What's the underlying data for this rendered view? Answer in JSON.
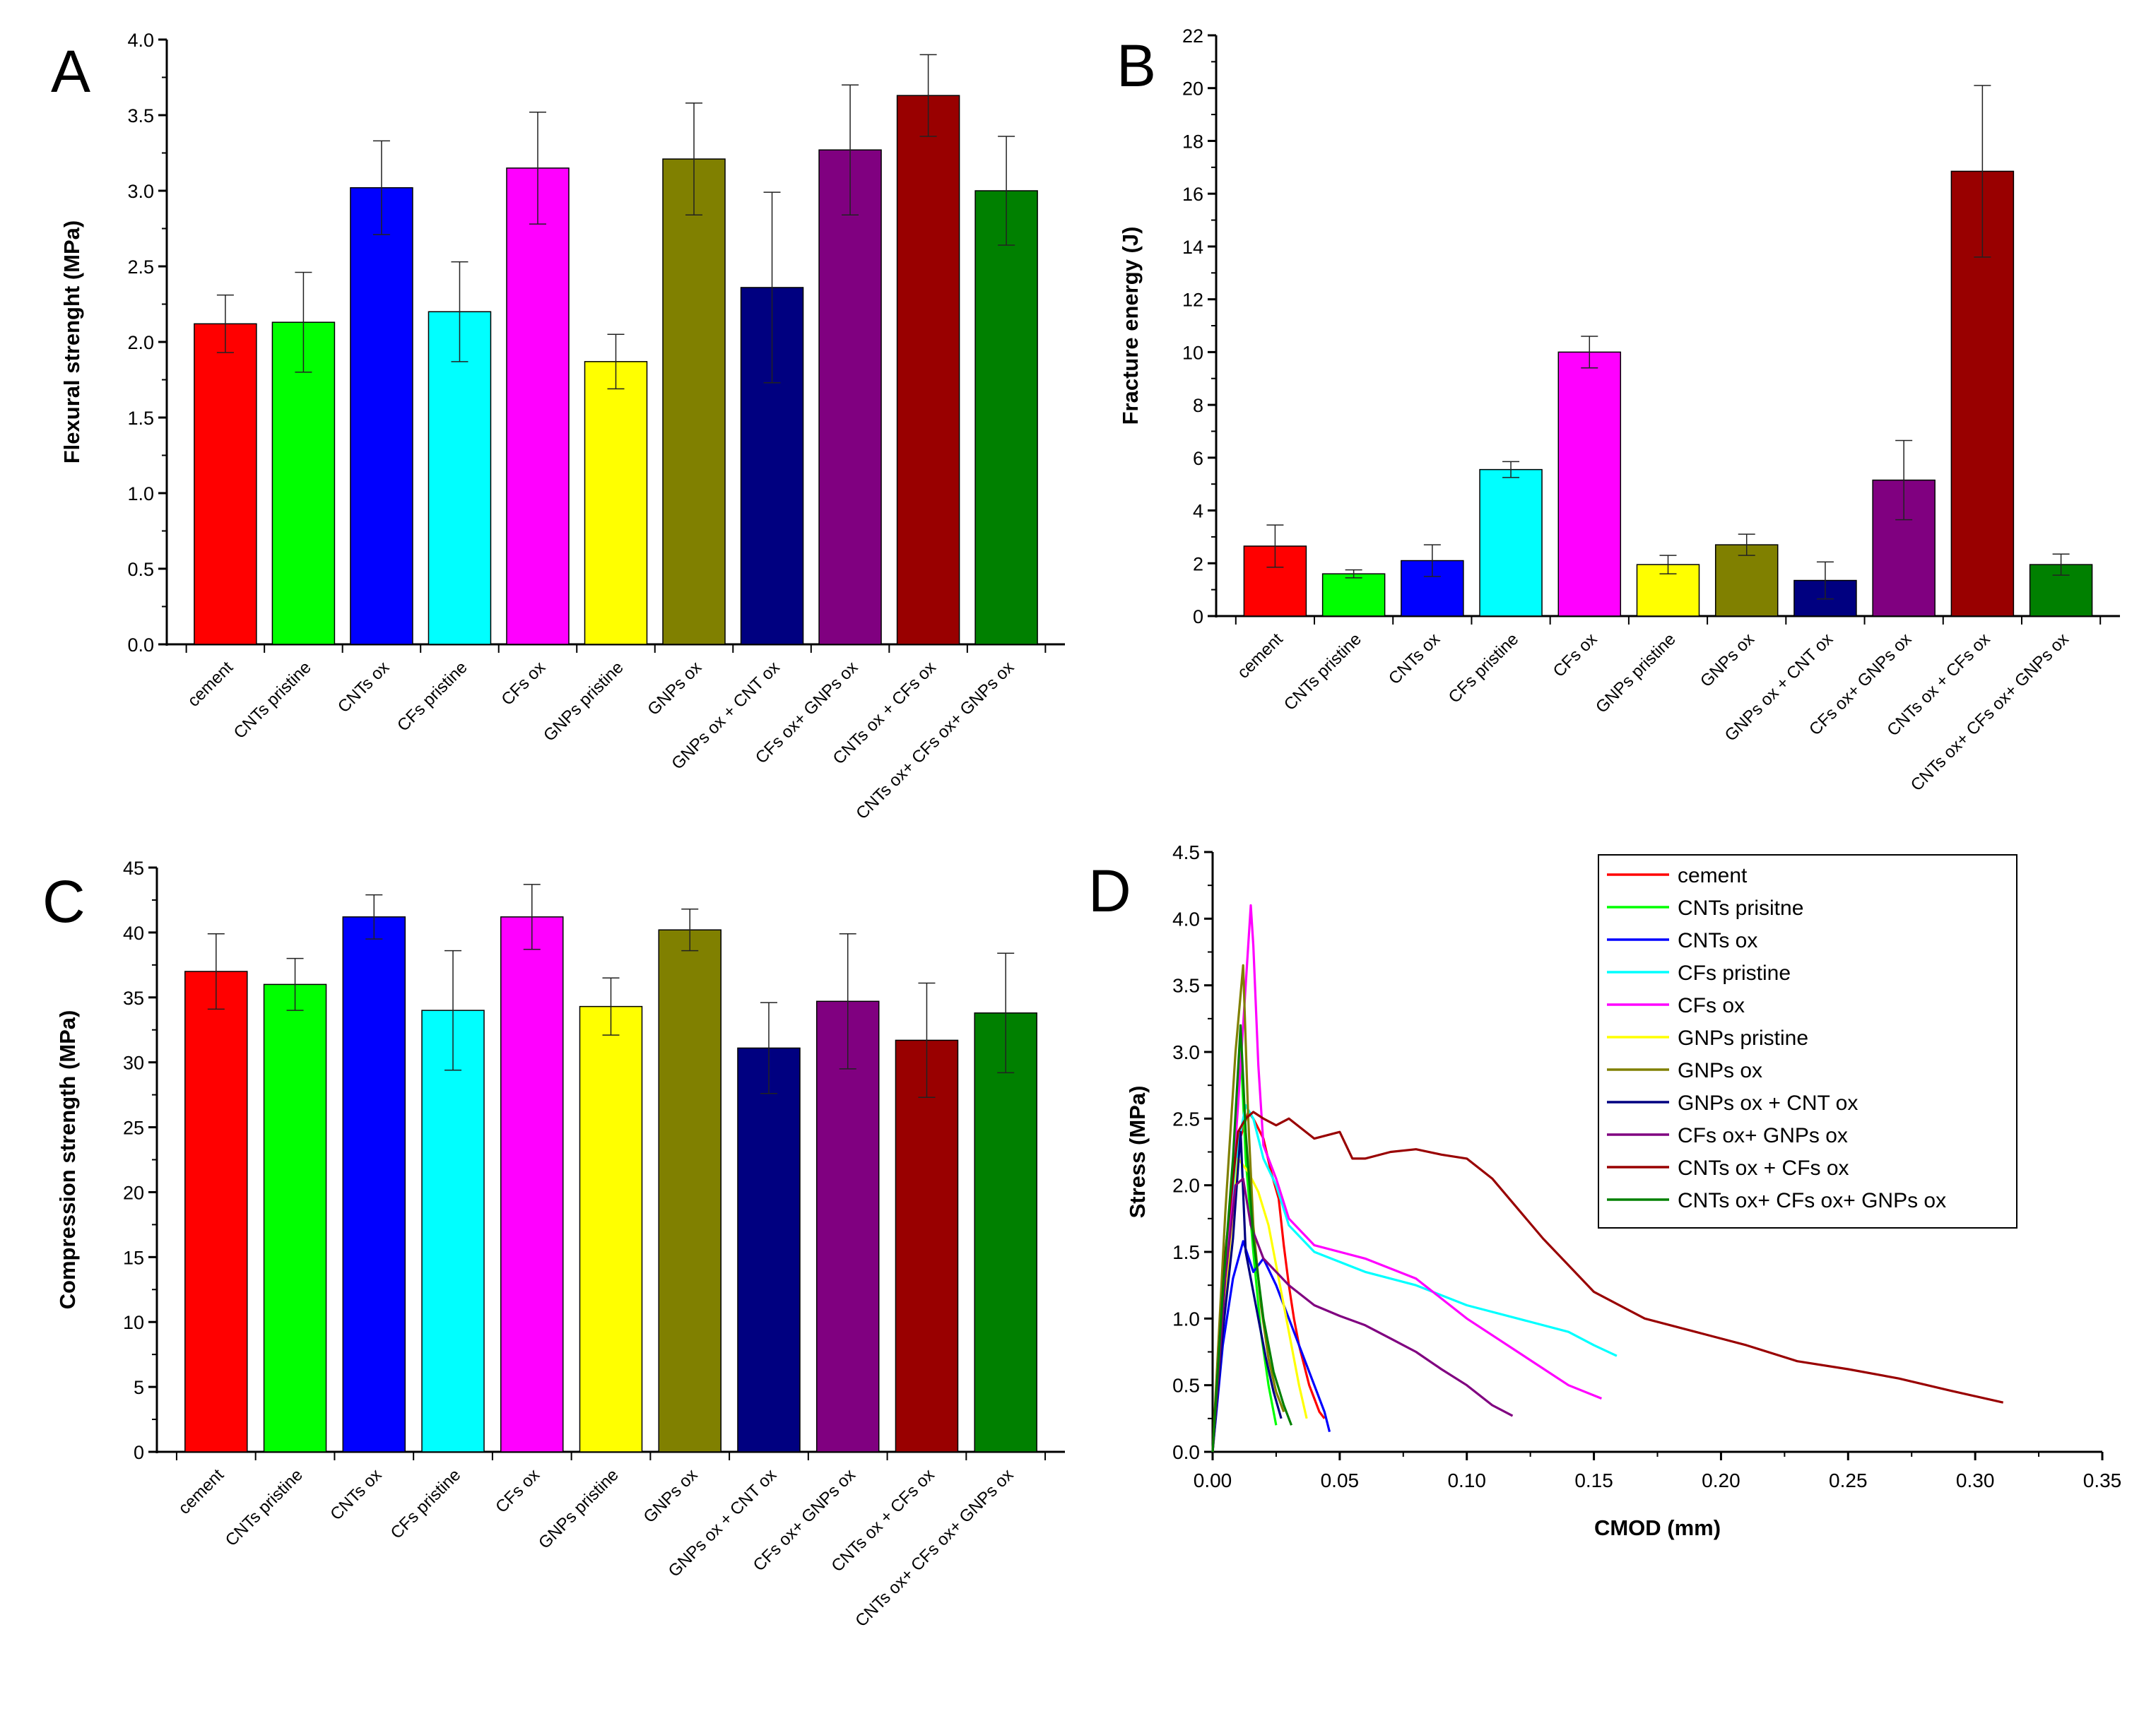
{
  "figure": {
    "background": "#ffffff"
  },
  "chart_data": [
    {
      "id": "A",
      "panel_label": "A",
      "type": "bar",
      "ylabel": "Flexural strenght (MPa)",
      "xlabel": "",
      "ylim": [
        0,
        4.0
      ],
      "yticks": [
        "0.0",
        "0.5",
        "1.0",
        "1.5",
        "2.0",
        "2.5",
        "3.0",
        "3.5",
        "4.0"
      ],
      "categories": [
        "cement",
        "CNTs pristine",
        "CNTs ox",
        "CFs pristine",
        "CFs ox",
        "GNPs pristine",
        "GNPs ox",
        "GNPs ox + CNT ox",
        "CFs ox+ GNPs ox",
        "CNTs ox + CFs ox",
        "CNTs ox+ CFs ox+ GNPs ox"
      ],
      "values": [
        2.12,
        2.13,
        3.02,
        2.2,
        3.15,
        1.87,
        3.21,
        2.36,
        3.27,
        3.63,
        3.0
      ],
      "errors": [
        0.19,
        0.33,
        0.31,
        0.33,
        0.37,
        0.18,
        0.37,
        0.63,
        0.43,
        0.27,
        0.36
      ],
      "colors": [
        "#ff0000",
        "#00ff00",
        "#0000ff",
        "#00ffff",
        "#ff00ff",
        "#ffff00",
        "#808000",
        "#000080",
        "#800080",
        "#990000",
        "#008000"
      ]
    },
    {
      "id": "B",
      "panel_label": "B",
      "type": "bar",
      "ylabel": "Fracture energy (J)",
      "xlabel": "",
      "ylim": [
        0,
        22
      ],
      "yticks": [
        "0",
        "2",
        "4",
        "6",
        "8",
        "10",
        "12",
        "14",
        "16",
        "18",
        "20",
        "22"
      ],
      "categories": [
        "cement",
        "CNTs pristine",
        "CNTs ox",
        "CFs pristine",
        "CFs ox",
        "GNPs pristine",
        "GNPs ox",
        "GNPs ox + CNT ox",
        "CFs ox+ GNPs ox",
        "CNTs ox + CFs ox",
        "CNTs ox+ CFs ox+ GNPs ox"
      ],
      "values": [
        2.65,
        1.6,
        2.1,
        5.55,
        10.0,
        1.95,
        2.7,
        1.35,
        5.15,
        16.85,
        1.95
      ],
      "errors": [
        0.8,
        0.15,
        0.6,
        0.3,
        0.6,
        0.35,
        0.4,
        0.7,
        1.5,
        3.25,
        0.4
      ],
      "colors": [
        "#ff0000",
        "#00ff00",
        "#0000ff",
        "#00ffff",
        "#ff00ff",
        "#ffff00",
        "#808000",
        "#000080",
        "#800080",
        "#990000",
        "#008000"
      ]
    },
    {
      "id": "C",
      "panel_label": "C",
      "type": "bar",
      "ylabel": "Compression strength (MPa)",
      "xlabel": "",
      "ylim": [
        0,
        45
      ],
      "yticks": [
        "0",
        "5",
        "10",
        "15",
        "20",
        "25",
        "30",
        "35",
        "40",
        "45"
      ],
      "categories": [
        "cement",
        "CNTs pristine",
        "CNTs ox",
        "CFs pristine",
        "CFs ox",
        "GNPs pristine",
        "GNPs ox",
        "GNPs ox + CNT ox",
        "CFs ox+ GNPs ox",
        "CNTs ox + CFs ox",
        "CNTs ox+ CFs ox+ GNPs ox"
      ],
      "values": [
        37.0,
        36.0,
        41.2,
        34.0,
        41.2,
        34.3,
        40.2,
        31.1,
        34.7,
        31.7,
        33.8
      ],
      "errors": [
        2.9,
        2.0,
        1.7,
        4.6,
        2.5,
        2.2,
        1.6,
        3.5,
        5.2,
        4.4,
        4.6
      ],
      "colors": [
        "#ff0000",
        "#00ff00",
        "#0000ff",
        "#00ffff",
        "#ff00ff",
        "#ffff00",
        "#808000",
        "#000080",
        "#800080",
        "#990000",
        "#008000"
      ]
    },
    {
      "id": "D",
      "panel_label": "D",
      "type": "line",
      "xlabel": "CMOD (mm)",
      "ylabel": "Stress (MPa)",
      "xlim": [
        0,
        0.35
      ],
      "ylim": [
        0,
        4.5
      ],
      "xticks": [
        "0.00",
        "0.05",
        "0.10",
        "0.15",
        "0.20",
        "0.25",
        "0.30",
        "0.35"
      ],
      "yticks": [
        "0.0",
        "0.5",
        "1.0",
        "1.5",
        "2.0",
        "2.5",
        "3.0",
        "3.5",
        "4.0",
        "4.5"
      ],
      "legend_position": "top-right",
      "series": [
        {
          "name": "cement",
          "color": "#ff0000",
          "x": [
            0,
            0.005,
            0.01,
            0.014,
            0.016,
            0.02,
            0.023,
            0.026,
            0.028,
            0.03,
            0.032,
            0.034,
            0.036,
            0.038,
            0.04,
            0.042,
            0.044
          ],
          "y": [
            0,
            1.4,
            2.3,
            2.55,
            2.5,
            2.35,
            2.1,
            1.9,
            1.55,
            1.25,
            1.0,
            0.8,
            0.65,
            0.5,
            0.4,
            0.3,
            0.25
          ]
        },
        {
          "name": "CNTs prisitne",
          "color": "#00ff00",
          "x": [
            0,
            0.004,
            0.008,
            0.011,
            0.013,
            0.016,
            0.019,
            0.022,
            0.025
          ],
          "y": [
            0,
            1.0,
            2.0,
            3.05,
            2.2,
            1.5,
            0.9,
            0.5,
            0.2
          ]
        },
        {
          "name": "CNTs ox",
          "color": "#0000ff",
          "x": [
            0,
            0.004,
            0.008,
            0.012,
            0.016,
            0.02,
            0.025,
            0.03,
            0.035,
            0.04,
            0.044,
            0.046
          ],
          "y": [
            0,
            0.8,
            1.3,
            1.58,
            1.35,
            1.45,
            1.25,
            1.0,
            0.75,
            0.5,
            0.3,
            0.15
          ]
        },
        {
          "name": "CFs pristine",
          "color": "#00ffff",
          "x": [
            0,
            0.006,
            0.01,
            0.013,
            0.016,
            0.02,
            0.025,
            0.03,
            0.04,
            0.06,
            0.08,
            0.1,
            0.12,
            0.14,
            0.15,
            0.159
          ],
          "y": [
            0,
            1.5,
            2.3,
            2.6,
            2.5,
            2.2,
            2.0,
            1.7,
            1.5,
            1.35,
            1.25,
            1.1,
            1.0,
            0.9,
            0.8,
            0.72
          ]
        },
        {
          "name": "CFs ox",
          "color": "#ff00ff",
          "x": [
            0,
            0.006,
            0.01,
            0.013,
            0.015,
            0.016,
            0.018,
            0.02,
            0.025,
            0.03,
            0.04,
            0.06,
            0.08,
            0.1,
            0.12,
            0.14,
            0.153
          ],
          "y": [
            0,
            1.5,
            2.6,
            3.5,
            4.1,
            3.8,
            2.9,
            2.3,
            2.05,
            1.75,
            1.55,
            1.45,
            1.3,
            1.0,
            0.75,
            0.5,
            0.4
          ]
        },
        {
          "name": "GNPs pristine",
          "color": "#ffff00",
          "x": [
            0,
            0.006,
            0.01,
            0.014,
            0.018,
            0.022,
            0.026,
            0.03,
            0.034,
            0.037
          ],
          "y": [
            0,
            1.4,
            2.2,
            2.1,
            1.95,
            1.7,
            1.3,
            0.9,
            0.5,
            0.25
          ]
        },
        {
          "name": "GNPs ox",
          "color": "#808000",
          "x": [
            0,
            0.005,
            0.009,
            0.012,
            0.014,
            0.016,
            0.019,
            0.022,
            0.025,
            0.028
          ],
          "y": [
            0,
            1.8,
            3.0,
            3.65,
            2.5,
            1.7,
            1.1,
            0.7,
            0.45,
            0.3
          ]
        },
        {
          "name": "GNPs ox + CNT ox",
          "color": "#000080",
          "x": [
            0,
            0.004,
            0.008,
            0.011,
            0.013,
            0.015,
            0.018,
            0.021,
            0.024,
            0.027
          ],
          "y": [
            0,
            0.9,
            1.6,
            2.4,
            1.5,
            1.3,
            1.0,
            0.7,
            0.45,
            0.25
          ]
        },
        {
          "name": "CFs ox+ GNPs ox",
          "color": "#800080",
          "x": [
            0,
            0.005,
            0.009,
            0.012,
            0.015,
            0.02,
            0.03,
            0.04,
            0.05,
            0.06,
            0.07,
            0.08,
            0.09,
            0.1,
            0.11,
            0.118
          ],
          "y": [
            0,
            1.3,
            2.0,
            2.05,
            1.7,
            1.45,
            1.25,
            1.1,
            1.02,
            0.95,
            0.85,
            0.75,
            0.62,
            0.5,
            0.35,
            0.27
          ]
        },
        {
          "name": "CNTs ox + CFs ox",
          "color": "#990000",
          "x": [
            0,
            0.005,
            0.01,
            0.013,
            0.016,
            0.02,
            0.025,
            0.03,
            0.04,
            0.05,
            0.055,
            0.06,
            0.07,
            0.08,
            0.09,
            0.1,
            0.11,
            0.13,
            0.15,
            0.17,
            0.19,
            0.21,
            0.23,
            0.25,
            0.27,
            0.29,
            0.311
          ],
          "y": [
            0,
            1.5,
            2.4,
            2.5,
            2.55,
            2.5,
            2.45,
            2.5,
            2.35,
            2.4,
            2.2,
            2.2,
            2.25,
            2.27,
            2.23,
            2.2,
            2.05,
            1.6,
            1.2,
            1.0,
            0.9,
            0.8,
            0.68,
            0.62,
            0.55,
            0.46,
            0.37
          ]
        },
        {
          "name": "CNTs ox+ CFs ox+ GNPs ox",
          "color": "#008000",
          "x": [
            0,
            0.004,
            0.008,
            0.011,
            0.013,
            0.016,
            0.02,
            0.024,
            0.028,
            0.031
          ],
          "y": [
            0,
            1.2,
            2.2,
            3.2,
            2.4,
            1.6,
            1.0,
            0.6,
            0.35,
            0.2
          ]
        }
      ]
    }
  ]
}
